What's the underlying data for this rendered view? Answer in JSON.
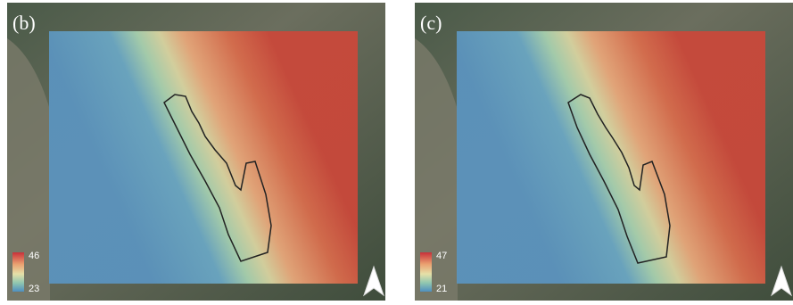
{
  "panels": [
    {
      "label": "(b)",
      "colorbar": {
        "max": 46,
        "min": 23
      }
    },
    {
      "label": "(c)",
      "colorbar": {
        "max": 47,
        "min": 21
      }
    }
  ]
}
